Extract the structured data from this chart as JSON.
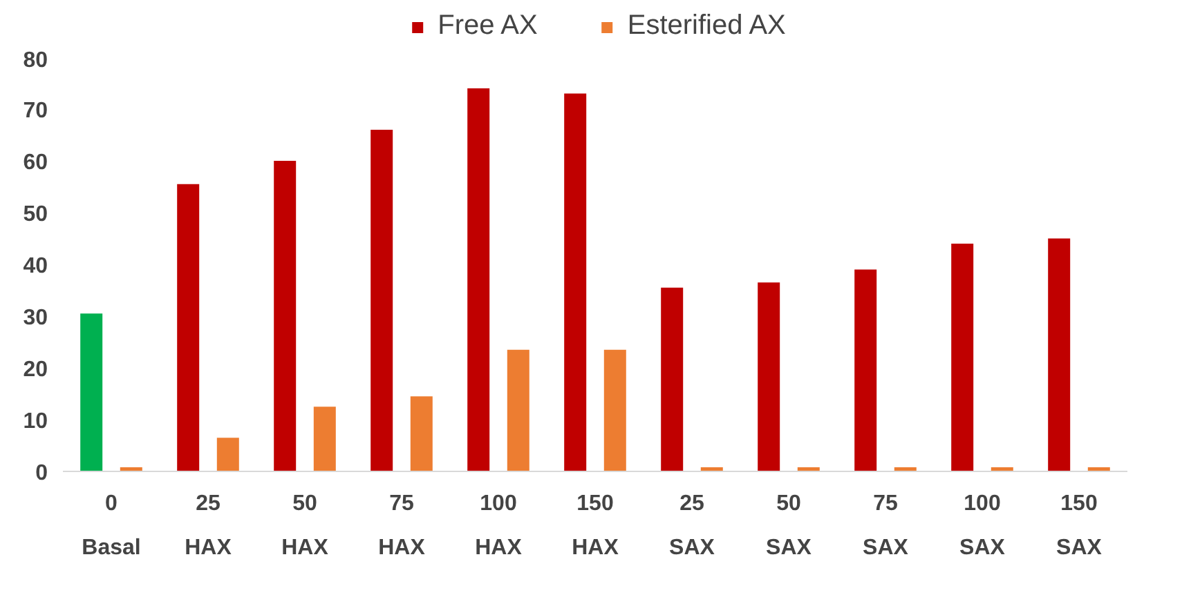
{
  "chart_data": {
    "type": "bar",
    "categories": [
      "0\nBasal",
      "25\nHAX",
      "50\nHAX",
      "75\nHAX",
      "100\nHAX",
      "150\nHAX",
      "25\nSAX",
      "50\nSAX",
      "75\nSAX",
      "100\nSAX",
      "150\nSAX"
    ],
    "series": [
      {
        "name": "Free AX",
        "color": "#c00000",
        "colors": [
          "#00b050",
          "#c00000",
          "#c00000",
          "#c00000",
          "#c00000",
          "#c00000",
          "#c00000",
          "#c00000",
          "#c00000",
          "#c00000",
          "#c00000"
        ],
        "values": [
          30.5,
          55.5,
          60,
          66,
          74,
          73,
          35.5,
          36.5,
          39,
          44,
          45
        ]
      },
      {
        "name": "Esterified AX",
        "color": "#ed7d31",
        "values": [
          0.8,
          6.5,
          12.5,
          14.5,
          23.5,
          23.5,
          0.8,
          0.8,
          0.8,
          0.8,
          0.8
        ]
      }
    ],
    "ylim": [
      0,
      80
    ],
    "yticks": [
      0,
      10,
      20,
      30,
      40,
      50,
      60,
      70,
      80
    ],
    "grid": false,
    "legend": "top"
  }
}
